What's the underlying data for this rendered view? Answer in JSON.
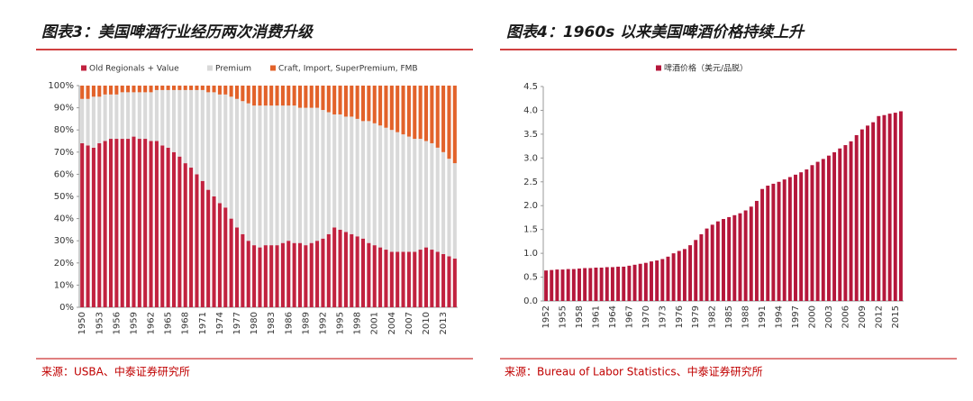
{
  "chart_data": [
    {
      "type": "bar",
      "stacked": true,
      "title": "图表3：美国啤酒行业经历两次消费升级",
      "source": "来源：USBA、中泰证券研究所",
      "categories": [
        "1950",
        null,
        null,
        "1953",
        null,
        null,
        "1956",
        null,
        null,
        "1959",
        null,
        null,
        "1962",
        null,
        null,
        "1965",
        null,
        null,
        "1968",
        null,
        null,
        "1971",
        null,
        null,
        "1974",
        null,
        null,
        "1977",
        null,
        null,
        "1980",
        null,
        null,
        "1983",
        null,
        null,
        "1986",
        null,
        null,
        "1989",
        null,
        null,
        "1992",
        null,
        null,
        "1995",
        null,
        null,
        "1998",
        null,
        null,
        "2001",
        null,
        null,
        "2004",
        null,
        null,
        "2007",
        null,
        null,
        "2010",
        null,
        null,
        "2013",
        null,
        null
      ],
      "series": [
        {
          "name": "Old Regionals + Value",
          "color": "#c1223f",
          "values": [
            74,
            73,
            72,
            74,
            75,
            76,
            76,
            76,
            76,
            77,
            76,
            76,
            75,
            75,
            73,
            72,
            70,
            68,
            65,
            63,
            60,
            57,
            53,
            50,
            47,
            45,
            40,
            36,
            33,
            30,
            28,
            27,
            28,
            28,
            28,
            29,
            30,
            29,
            29,
            28,
            29,
            30,
            31,
            33,
            36,
            35,
            34,
            33,
            32,
            31,
            29,
            28,
            27,
            26,
            25,
            25,
            25,
            25,
            25,
            26,
            27,
            26,
            25,
            24,
            23,
            22
          ]
        },
        {
          "name": "Premium",
          "color": "#d9d9d9",
          "values": [
            20,
            21,
            23,
            21,
            21,
            20,
            20,
            21,
            21,
            20,
            21,
            21,
            22,
            23,
            25,
            26,
            28,
            30,
            33,
            35,
            38,
            41,
            44,
            47,
            49,
            51,
            55,
            58,
            60,
            62,
            63,
            64,
            63,
            63,
            63,
            62,
            61,
            62,
            61,
            62,
            61,
            60,
            58,
            55,
            51,
            52,
            52,
            53,
            53,
            53,
            55,
            55,
            55,
            55,
            55,
            54,
            53,
            52,
            51,
            50,
            48,
            48,
            47,
            46,
            44,
            43
          ]
        },
        {
          "name": "Craft, Import, SuperPremium, FMB",
          "color": "#e2622a",
          "values": [
            6,
            6,
            5,
            5,
            4,
            4,
            4,
            3,
            3,
            3,
            3,
            3,
            3,
            2,
            2,
            2,
            2,
            2,
            2,
            2,
            2,
            2,
            3,
            3,
            4,
            4,
            5,
            6,
            7,
            8,
            9,
            9,
            9,
            9,
            9,
            9,
            9,
            9,
            10,
            10,
            10,
            10,
            11,
            12,
            13,
            13,
            14,
            14,
            15,
            16,
            16,
            17,
            18,
            19,
            20,
            21,
            22,
            23,
            24,
            24,
            25,
            26,
            28,
            30,
            33,
            35
          ]
        }
      ],
      "ylim": [
        0,
        100
      ],
      "yticks": [
        {
          "value": 0,
          "label": "0%"
        },
        {
          "value": 10,
          "label": "10%"
        },
        {
          "value": 20,
          "label": "20%"
        },
        {
          "value": 30,
          "label": "30%"
        },
        {
          "value": 40,
          "label": "40%"
        },
        {
          "value": 50,
          "label": "50%"
        },
        {
          "value": 60,
          "label": "60%"
        },
        {
          "value": 70,
          "label": "70%"
        },
        {
          "value": 80,
          "label": "80%"
        },
        {
          "value": 90,
          "label": "90%"
        },
        {
          "value": 100,
          "label": "100%"
        }
      ]
    },
    {
      "type": "bar",
      "title": "图表4：1960s 以来美国啤酒价格持续上升",
      "source": "来源：Bureau of Labor Statistics、中泰证券研究所",
      "categories": [
        "1952",
        null,
        null,
        "1955",
        null,
        null,
        "1958",
        null,
        null,
        "1961",
        null,
        null,
        "1964",
        null,
        null,
        "1967",
        null,
        null,
        "1970",
        null,
        null,
        "1973",
        null,
        null,
        "1976",
        null,
        null,
        "1979",
        null,
        null,
        "1982",
        null,
        null,
        "1985",
        null,
        null,
        "1988",
        null,
        null,
        "1991",
        null,
        null,
        "1994",
        null,
        null,
        "1997",
        null,
        null,
        "2000",
        null,
        null,
        "2003",
        null,
        null,
        "2006",
        null,
        null,
        "2009",
        null,
        null,
        "2012",
        null,
        null,
        "2015",
        null
      ],
      "series": [
        {
          "name": "啤酒价格（美元/品脱）",
          "color": "#b5173b",
          "values": [
            0.64,
            0.65,
            0.66,
            0.66,
            0.67,
            0.67,
            0.68,
            0.69,
            0.69,
            0.7,
            0.7,
            0.71,
            0.71,
            0.72,
            0.72,
            0.74,
            0.76,
            0.78,
            0.8,
            0.83,
            0.85,
            0.88,
            0.93,
            1.0,
            1.05,
            1.09,
            1.17,
            1.28,
            1.4,
            1.52,
            1.6,
            1.67,
            1.72,
            1.76,
            1.8,
            1.84,
            1.9,
            1.98,
            2.1,
            2.35,
            2.42,
            2.46,
            2.5,
            2.55,
            2.6,
            2.65,
            2.7,
            2.76,
            2.85,
            2.92,
            2.98,
            3.05,
            3.12,
            3.2,
            3.27,
            3.35,
            3.48,
            3.6,
            3.68,
            3.75,
            3.88,
            3.9,
            3.93,
            3.95,
            3.98
          ]
        }
      ],
      "ylim": [
        0,
        4.5
      ],
      "yticks": [
        {
          "value": 0,
          "label": "0.0"
        },
        0.5,
        {
          "value": 1,
          "label": "1.0"
        },
        1.5,
        {
          "value": 2,
          "label": "2.0"
        },
        2.5,
        {
          "value": 3,
          "label": "3.0"
        },
        3.5,
        {
          "value": 4,
          "label": "4.0"
        },
        4.5
      ]
    }
  ]
}
